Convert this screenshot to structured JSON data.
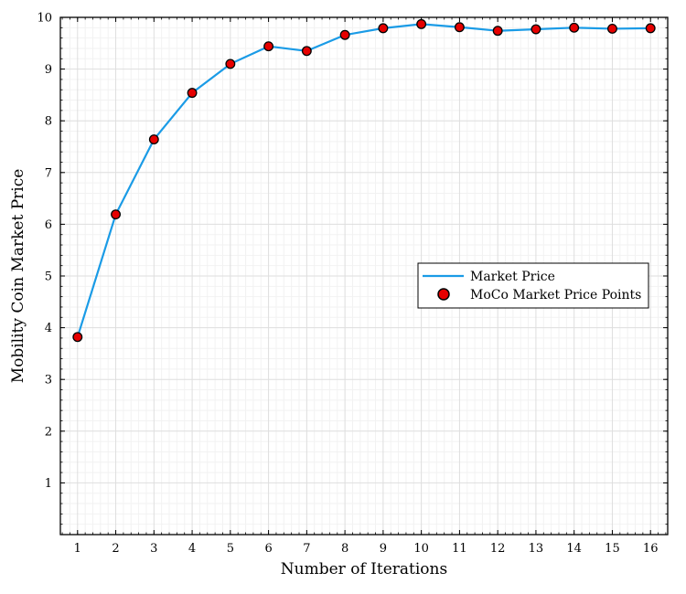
{
  "chart_data": {
    "type": "line",
    "xlabel": "Number of Iterations",
    "ylabel": "Mobility Coin Market Price",
    "xlim": [
      0.55,
      16.45
    ],
    "ylim": [
      0,
      10
    ],
    "xticks": [
      1,
      2,
      3,
      4,
      5,
      6,
      7,
      8,
      9,
      10,
      11,
      12,
      13,
      14,
      15,
      16
    ],
    "yticks": [
      1,
      2,
      3,
      4,
      5,
      6,
      7,
      8,
      9,
      10
    ],
    "grid": true,
    "minor_grid": true,
    "legend_position": "right",
    "series": [
      {
        "name": "Market Price",
        "kind": "line",
        "color": "#1a9be6",
        "x": [
          1,
          2,
          3,
          4,
          5,
          6,
          7,
          8,
          9,
          10,
          11,
          12,
          13,
          14,
          15,
          16
        ],
        "y": [
          3.82,
          6.19,
          7.64,
          8.54,
          9.1,
          9.44,
          9.35,
          9.66,
          9.79,
          9.87,
          9.81,
          9.74,
          9.77,
          9.8,
          9.78,
          9.79
        ]
      },
      {
        "name": "MoCo Market Price Points",
        "kind": "scatter",
        "color": "#e60000",
        "x": [
          1,
          2,
          3,
          4,
          5,
          6,
          7,
          8,
          9,
          10,
          11,
          12,
          13,
          14,
          15,
          16
        ],
        "y": [
          3.82,
          6.19,
          7.64,
          8.54,
          9.1,
          9.44,
          9.35,
          9.66,
          9.79,
          9.87,
          9.81,
          9.74,
          9.77,
          9.8,
          9.78,
          9.79
        ]
      }
    ]
  }
}
